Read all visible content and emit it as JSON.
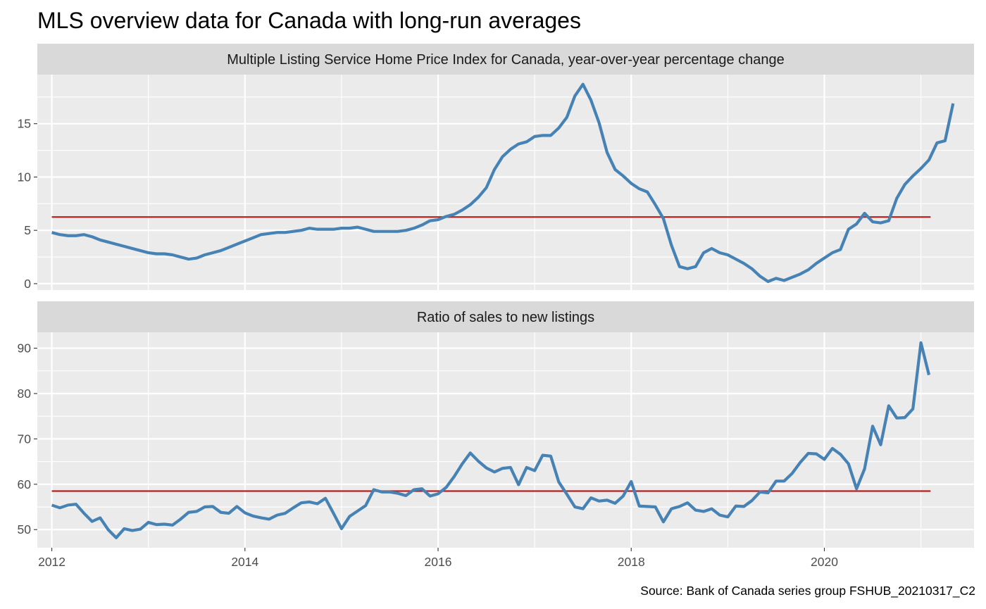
{
  "title": "MLS overview data for Canada with long-run averages",
  "caption": "Source: Bank of Canada series group FSHUB_20210317_C2",
  "colors": {
    "series": "#4682B4",
    "average": "#B22222",
    "panel_background": "#EBEBEB",
    "strip_background": "#D9D9D9",
    "grid": "#FFFFFF"
  },
  "chart_data": [
    {
      "type": "line",
      "title": "Multiple Listing Service Home Price Index for Canada, year-over-year percentage change",
      "x_ticks": [
        "2012",
        "2014",
        "2016",
        "2018",
        "2020"
      ],
      "y_ticks": [
        0,
        5,
        10,
        15
      ],
      "xlim": [
        2011.85,
        2021.55
      ],
      "ylim": [
        -0.6,
        19.6
      ],
      "grid": true,
      "x_start": "2012-01",
      "x_step_months": 1,
      "long_run_average": 6.25,
      "values": [
        4.8,
        4.6,
        4.5,
        4.5,
        4.6,
        4.4,
        4.1,
        3.9,
        3.7,
        3.5,
        3.3,
        3.1,
        2.9,
        2.8,
        2.8,
        2.7,
        2.5,
        2.3,
        2.4,
        2.7,
        2.9,
        3.1,
        3.4,
        3.7,
        4.0,
        4.3,
        4.6,
        4.7,
        4.8,
        4.8,
        4.9,
        5.0,
        5.2,
        5.1,
        5.1,
        5.1,
        5.2,
        5.2,
        5.3,
        5.1,
        4.9,
        4.9,
        4.9,
        4.9,
        5.0,
        5.2,
        5.5,
        5.9,
        6.0,
        6.3,
        6.5,
        6.9,
        7.4,
        8.1,
        9.0,
        10.7,
        11.9,
        12.6,
        13.1,
        13.3,
        13.8,
        13.9,
        13.9,
        14.6,
        15.6,
        17.6,
        18.7,
        17.2,
        15.1,
        12.3,
        10.7,
        10.1,
        9.4,
        8.9,
        8.6,
        7.4,
        6.1,
        3.6,
        1.6,
        1.4,
        1.6,
        2.9,
        3.3,
        2.9,
        2.7,
        2.3,
        1.9,
        1.4,
        0.7,
        0.2,
        0.5,
        0.3,
        0.6,
        0.9,
        1.3,
        1.9,
        2.4,
        2.9,
        3.2,
        5.1,
        5.6,
        6.6,
        5.8,
        5.7,
        5.9,
        8.0,
        9.3,
        10.1,
        10.8,
        11.6,
        13.2,
        13.4,
        16.9
      ]
    },
    {
      "type": "line",
      "title": "Ratio of sales to new listings",
      "x_ticks": [
        "2012",
        "2014",
        "2016",
        "2018",
        "2020"
      ],
      "y_ticks": [
        50,
        60,
        70,
        80,
        90
      ],
      "xlim": [
        2011.85,
        2021.55
      ],
      "ylim": [
        46,
        93.5
      ],
      "grid": true,
      "x_start": "2012-01",
      "x_step_months": 1,
      "long_run_average": 58.5,
      "values": [
        55.4,
        54.8,
        55.4,
        55.6,
        53.6,
        51.8,
        52.6,
        50.0,
        48.2,
        50.2,
        49.8,
        50.1,
        51.6,
        51.1,
        51.2,
        51.0,
        52.3,
        53.8,
        54.0,
        55.0,
        55.1,
        53.8,
        53.6,
        55.1,
        53.7,
        53.0,
        52.6,
        52.3,
        53.2,
        53.6,
        54.8,
        55.9,
        56.1,
        55.7,
        56.9,
        53.6,
        50.2,
        52.9,
        54.1,
        55.3,
        58.8,
        58.3,
        58.3,
        58.0,
        57.5,
        58.8,
        59.0,
        57.4,
        57.9,
        59.3,
        61.7,
        64.5,
        66.9,
        65.1,
        63.6,
        62.7,
        63.5,
        63.7,
        59.9,
        63.7,
        63.0,
        66.4,
        66.2,
        60.5,
        57.8,
        55.0,
        54.6,
        57.0,
        56.3,
        56.5,
        55.8,
        57.4,
        60.6,
        55.2,
        55.1,
        55.0,
        51.7,
        54.6,
        55.1,
        55.9,
        54.3,
        54.0,
        54.6,
        53.2,
        52.8,
        55.2,
        55.1,
        56.4,
        58.3,
        58.1,
        60.7,
        60.7,
        62.4,
        64.8,
        66.8,
        66.7,
        65.5,
        67.9,
        66.6,
        64.5,
        59.0,
        63.4,
        72.8,
        68.7,
        77.3,
        74.6,
        74.7,
        76.6,
        91.2,
        84.1
      ]
    }
  ]
}
